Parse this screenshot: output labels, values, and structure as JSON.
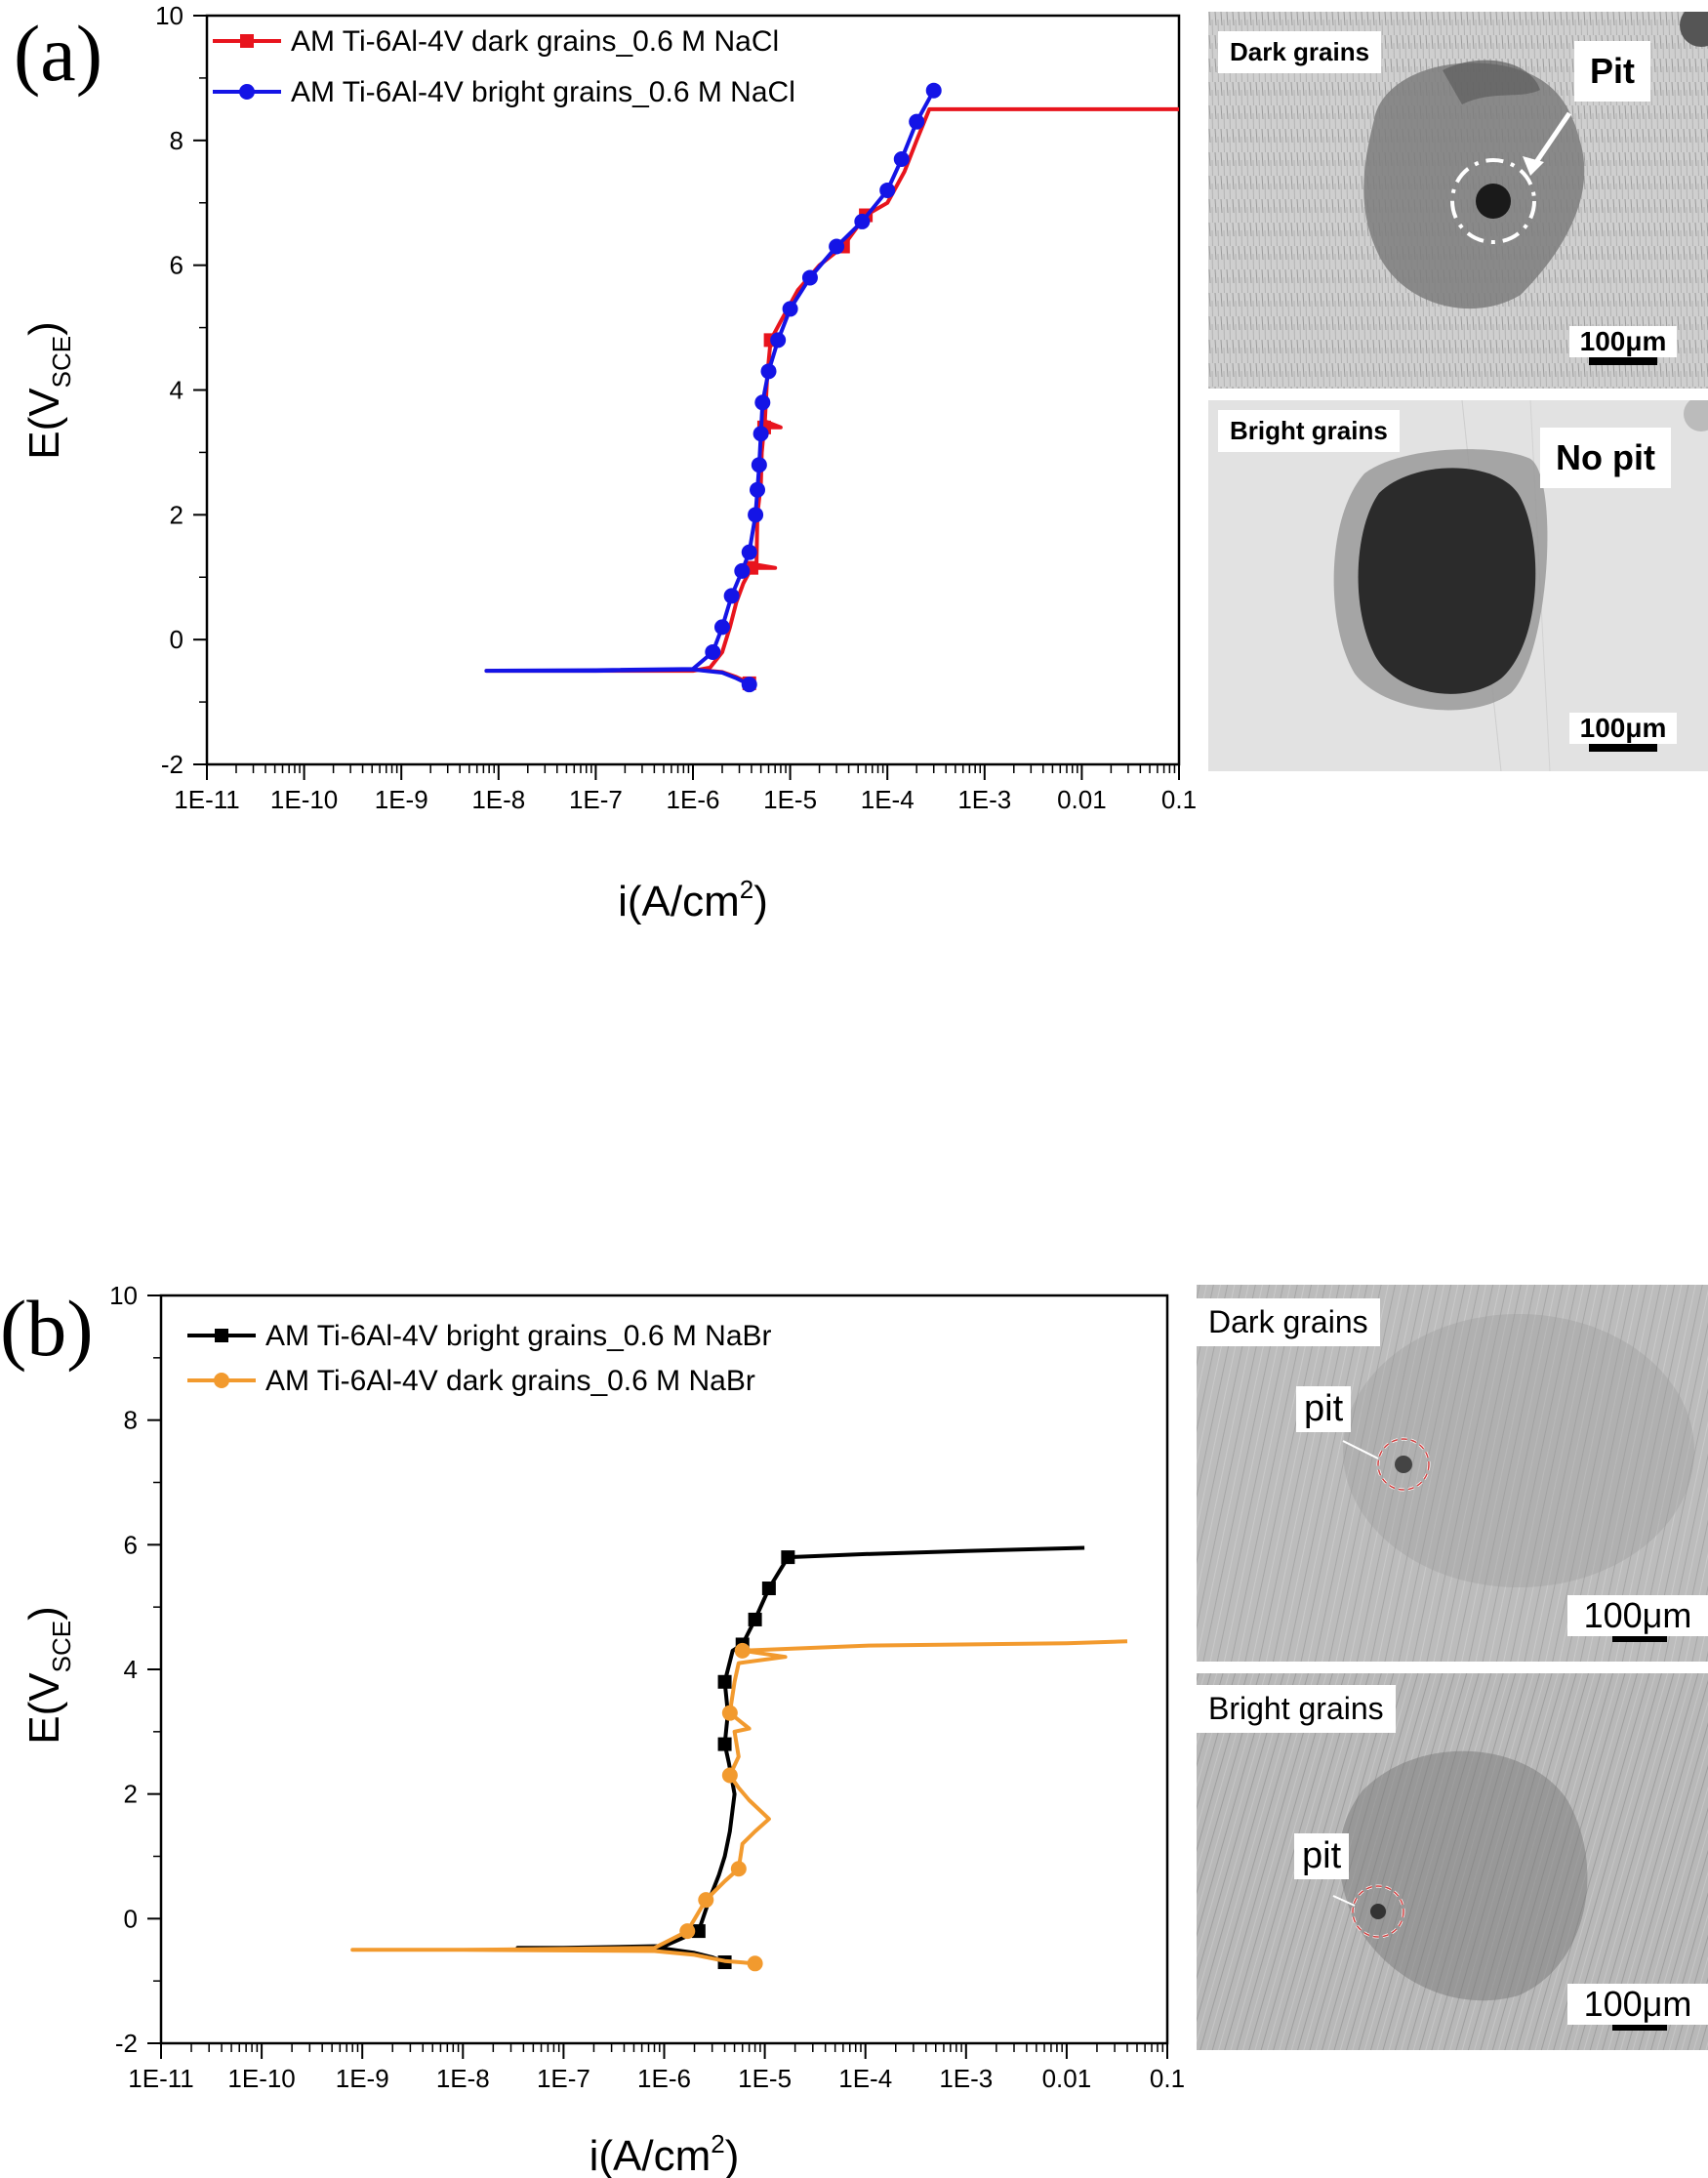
{
  "panels": [
    {
      "letter": "(a)",
      "chart_data": {
        "type": "line",
        "xscale": "log",
        "xlim": [
          1e-11,
          0.1
        ],
        "ylim": [
          -2,
          10
        ],
        "xticks": [
          "1E-11",
          "1E-10",
          "1E-9",
          "1E-8",
          "1E-7",
          "1E-6",
          "1E-5",
          "1E-4",
          "1E-3",
          "0.01",
          "0.1"
        ],
        "yticks": [
          "-2",
          "0",
          "2",
          "4",
          "6",
          "8",
          "10"
        ],
        "xlabel": "i(A/cm",
        "xlabel_sup": "2",
        "ylabel": "E(V",
        "ylabel_sub": "SCE",
        "legend": "top-left",
        "series": [
          {
            "name": "AM Ti-6Al-4V dark grains_0.6 M NaCl",
            "color": "#e8141d",
            "marker": "square",
            "points": [
              [
                3.8e-06,
                -0.7
              ],
              [
                2.8e-06,
                -0.6
              ],
              [
                2e-06,
                -0.52
              ],
              [
                1e-06,
                -0.48
              ],
              [
                1e-07,
                -0.5
              ],
              [
                7.5e-09,
                -0.5
              ],
              [
                1e-07,
                -0.5
              ],
              [
                1e-06,
                -0.5
              ],
              [
                1.5e-06,
                -0.45
              ],
              [
                2e-06,
                -0.2
              ],
              [
                2.4e-06,
                0.2
              ],
              [
                2.8e-06,
                0.6
              ],
              [
                3.3e-06,
                0.9
              ],
              [
                4e-06,
                1.15
              ],
              [
                7e-06,
                1.15
              ],
              [
                4.5e-06,
                1.2
              ],
              [
                4.6e-06,
                2
              ],
              [
                5e-06,
                2.5
              ],
              [
                5.1e-06,
                3
              ],
              [
                5.4e-06,
                3.4
              ],
              [
                8e-06,
                3.4
              ],
              [
                5.5e-06,
                3.5
              ],
              [
                5.8e-06,
                4.2
              ],
              [
                6.3e-06,
                4.8
              ],
              [
                8e-06,
                5.1
              ],
              [
                1.2e-05,
                5.6
              ],
              [
                2e-05,
                6
              ],
              [
                3.5e-05,
                6.3
              ],
              [
                6e-05,
                6.8
              ],
              [
                0.0001,
                7
              ],
              [
                0.00015,
                7.5
              ],
              [
                0.0002,
                8
              ],
              [
                0.00027,
                8.5
              ],
              [
                0.1,
                8.5
              ]
            ],
            "markers": [
              [
                3.8e-06,
                -0.7
              ],
              [
                4e-06,
                1.15
              ],
              [
                5.4e-06,
                3.4
              ],
              [
                6.3e-06,
                4.8
              ],
              [
                3.5e-05,
                6.3
              ],
              [
                6e-05,
                6.8
              ]
            ]
          },
          {
            "name": "AM Ti-6Al-4V bright grains_0.6 M NaCl",
            "color": "#1414e6",
            "marker": "circle",
            "points": [
              [
                3.8e-06,
                -0.72
              ],
              [
                2.8e-06,
                -0.62
              ],
              [
                2e-06,
                -0.53
              ],
              [
                1e-06,
                -0.48
              ],
              [
                1e-07,
                -0.5
              ],
              [
                7.5e-09,
                -0.5
              ],
              [
                1e-07,
                -0.49
              ],
              [
                1e-06,
                -0.47
              ],
              [
                1.6e-06,
                -0.2
              ],
              [
                2e-06,
                0.2
              ],
              [
                2.5e-06,
                0.7
              ],
              [
                3.2e-06,
                1.1
              ],
              [
                3.8e-06,
                1.4
              ],
              [
                4.4e-06,
                2.0
              ],
              [
                4.6e-06,
                2.4
              ],
              [
                4.8e-06,
                2.8
              ],
              [
                5e-06,
                3.3
              ],
              [
                5.2e-06,
                3.8
              ],
              [
                6e-06,
                4.3
              ],
              [
                7.5e-06,
                4.8
              ],
              [
                1e-05,
                5.3
              ],
              [
                1.6e-05,
                5.8
              ],
              [
                3e-05,
                6.3
              ],
              [
                5.5e-05,
                6.7
              ],
              [
                0.0001,
                7.2
              ],
              [
                0.00014,
                7.7
              ],
              [
                0.0002,
                8.3
              ],
              [
                0.0003,
                8.8
              ]
            ],
            "markers": [
              [
                3.8e-06,
                -0.72
              ],
              [
                1.6e-06,
                -0.2
              ],
              [
                2e-06,
                0.2
              ],
              [
                2.5e-06,
                0.7
              ],
              [
                3.2e-06,
                1.1
              ],
              [
                3.8e-06,
                1.4
              ],
              [
                4.4e-06,
                2.0
              ],
              [
                4.6e-06,
                2.4
              ],
              [
                4.8e-06,
                2.8
              ],
              [
                5e-06,
                3.3
              ],
              [
                5.2e-06,
                3.8
              ],
              [
                6e-06,
                4.3
              ],
              [
                7.5e-06,
                4.8
              ],
              [
                1e-05,
                5.3
              ],
              [
                1.6e-05,
                5.8
              ],
              [
                3e-05,
                6.3
              ],
              [
                5.5e-05,
                6.7
              ],
              [
                0.0001,
                7.2
              ],
              [
                0.00014,
                7.7
              ],
              [
                0.0002,
                8.3
              ],
              [
                0.0003,
                8.8
              ]
            ]
          }
        ]
      },
      "images": [
        {
          "label": "Dark grains",
          "annotation": "Pit",
          "scale": "100μm"
        },
        {
          "label": "Bright grains",
          "annotation": "No pit",
          "scale": "100μm"
        }
      ]
    },
    {
      "letter": "(b)",
      "chart_data": {
        "type": "line",
        "xscale": "log",
        "xlim": [
          1e-11,
          0.1
        ],
        "ylim": [
          -2,
          10
        ],
        "xticks": [
          "1E-11",
          "1E-10",
          "1E-9",
          "1E-8",
          "1E-7",
          "1E-6",
          "1E-5",
          "1E-4",
          "1E-3",
          "0.01",
          "0.1"
        ],
        "yticks": [
          "-2",
          "0",
          "2",
          "4",
          "6",
          "8",
          "10"
        ],
        "xlabel": "i(A/cm",
        "xlabel_sup": "2",
        "ylabel": "E(V",
        "ylabel_sub": "SCE",
        "legend": "top-left",
        "series": [
          {
            "name": "AM Ti-6Al-4V bright grains_0.6 M NaBr",
            "color": "#000000",
            "marker": "square",
            "points": [
              [
                4e-06,
                -0.7
              ],
              [
                3e-06,
                -0.62
              ],
              [
                2e-06,
                -0.55
              ],
              [
                1e-06,
                -0.48
              ],
              [
                1e-07,
                -0.47
              ],
              [
                3.5e-08,
                -0.47
              ],
              [
                1e-07,
                -0.47
              ],
              [
                1e-06,
                -0.44
              ],
              [
                2.2e-06,
                -0.2
              ],
              [
                2.8e-06,
                0.3
              ],
              [
                3.5e-06,
                0.7
              ],
              [
                4e-06,
                1
              ],
              [
                4.5e-06,
                1.4
              ],
              [
                5e-06,
                2
              ],
              [
                4.4e-06,
                2.5
              ],
              [
                4e-06,
                2.8
              ],
              [
                4.3e-06,
                3.3
              ],
              [
                4e-06,
                3.8
              ],
              [
                4.8e-06,
                4.3
              ],
              [
                6e-06,
                4.4
              ],
              [
                8e-06,
                4.8
              ],
              [
                1.1e-05,
                5.3
              ],
              [
                1.7e-05,
                5.8
              ],
              [
                0.0001,
                5.85
              ],
              [
                0.001,
                5.9
              ],
              [
                0.015,
                5.95
              ]
            ],
            "markers": [
              [
                4e-06,
                -0.7
              ],
              [
                2.2e-06,
                -0.2
              ],
              [
                4e-06,
                2.8
              ],
              [
                4e-06,
                3.8
              ],
              [
                6e-06,
                4.4
              ],
              [
                8e-06,
                4.8
              ],
              [
                1.1e-05,
                5.3
              ],
              [
                1.7e-05,
                5.8
              ]
            ]
          },
          {
            "name": "AM Ti-6Al-4V dark grains_0.6 M NaBr",
            "color": "#f29a2e",
            "marker": "circle",
            "points": [
              [
                8e-06,
                -0.72
              ],
              [
                4e-06,
                -0.68
              ],
              [
                2e-06,
                -0.58
              ],
              [
                8e-07,
                -0.52
              ],
              [
                1e-08,
                -0.5
              ],
              [
                8e-10,
                -0.5
              ],
              [
                1e-08,
                -0.5
              ],
              [
                8e-07,
                -0.47
              ],
              [
                1.7e-06,
                -0.2
              ],
              [
                2.6e-06,
                0.3
              ],
              [
                4e-06,
                0.6
              ],
              [
                5.5e-06,
                0.8
              ],
              [
                6e-06,
                1.2
              ],
              [
                8e-06,
                1.4
              ],
              [
                1.1e-05,
                1.6
              ],
              [
                7e-06,
                1.9
              ],
              [
                5.5e-06,
                2.1
              ],
              [
                4.5e-06,
                2.3
              ],
              [
                5.5e-06,
                2.6
              ],
              [
                5e-06,
                3.0
              ],
              [
                7e-06,
                3.05
              ],
              [
                4.5e-06,
                3.3
              ],
              [
                5e-06,
                3.8
              ],
              [
                5.5e-06,
                4.1
              ],
              [
                1.6e-05,
                4.2
              ],
              [
                6e-06,
                4.3
              ],
              [
                0.0001,
                4.38
              ],
              [
                0.01,
                4.42
              ],
              [
                0.04,
                4.45
              ]
            ],
            "markers": [
              [
                8e-06,
                -0.72
              ],
              [
                1.7e-06,
                -0.2
              ],
              [
                2.6e-06,
                0.3
              ],
              [
                5.5e-06,
                0.8
              ],
              [
                4.5e-06,
                2.3
              ],
              [
                4.5e-06,
                3.3
              ],
              [
                6e-06,
                4.3
              ]
            ]
          }
        ]
      },
      "images": [
        {
          "label": "Dark grains",
          "annotation": "pit",
          "scale": "100μm"
        },
        {
          "label": "Bright grains",
          "annotation": "pit",
          "scale": "100μm"
        }
      ]
    }
  ]
}
